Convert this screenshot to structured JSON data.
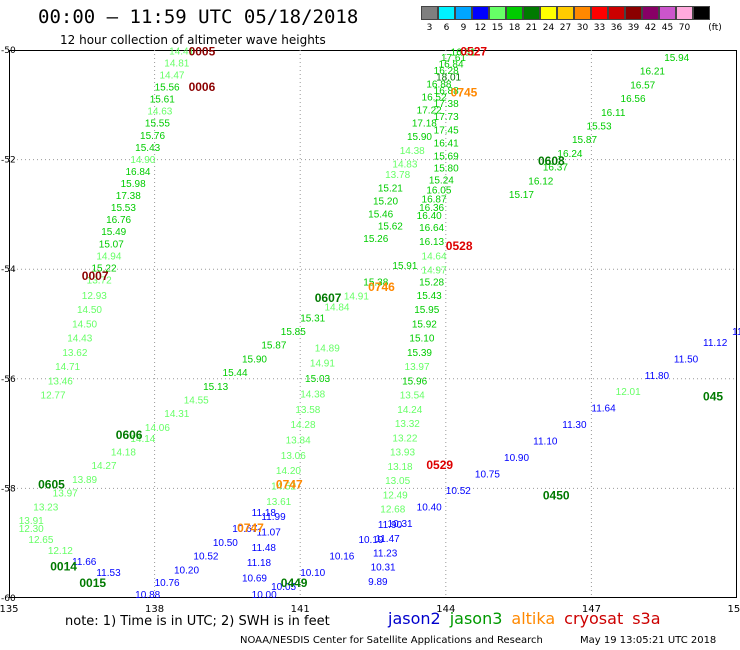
{
  "header": {
    "title": "00:00 – 11:59 UTC 05/18/2018",
    "subtitle": "12 hour collection of altimeter wave heights"
  },
  "legend": {
    "unit": "(ft)",
    "bins": [
      {
        "label": "3",
        "color": "#7f7f7f"
      },
      {
        "label": "6",
        "color": "#00f2ff"
      },
      {
        "label": "9",
        "color": "#00a6ff"
      },
      {
        "label": "12",
        "color": "#0000ff"
      },
      {
        "label": "15",
        "color": "#66ff66"
      },
      {
        "label": "18",
        "color": "#00cc00"
      },
      {
        "label": "21",
        "color": "#007a00"
      },
      {
        "label": "24",
        "color": "#ffff00"
      },
      {
        "label": "27",
        "color": "#ffcc00"
      },
      {
        "label": "30",
        "color": "#ff8800"
      },
      {
        "label": "33",
        "color": "#ff0000"
      },
      {
        "label": "36",
        "color": "#cc0000"
      },
      {
        "label": "39",
        "color": "#8b0000"
      },
      {
        "label": "42",
        "color": "#880066"
      },
      {
        "label": "45",
        "color": "#cc55cc"
      },
      {
        "label": "70",
        "color": "#ffaadd"
      },
      {
        "label": "",
        "color": "#000000"
      }
    ]
  },
  "map": {
    "x_range": [
      135,
      150
    ],
    "y_range": [
      -60,
      -50
    ],
    "x_ticks": [
      "135",
      "138",
      "141",
      "144",
      "147",
      "150"
    ],
    "y_ticks": [
      "-50",
      "-52",
      "-54",
      "-56",
      "-58",
      "-60"
    ]
  },
  "note": "note: 1) Time is in UTC; 2) SWH is in feet",
  "missions": [
    {
      "label": "jason2",
      "color": "#0000cc"
    },
    {
      "label": "jason3",
      "color": "#009900"
    },
    {
      "label": "altika",
      "color": "#ff8800"
    },
    {
      "label": "cryosat",
      "color": "#cc0000"
    },
    {
      "label": "s3a",
      "color": "#cc0000"
    }
  ],
  "credit": "NOAA/NESDIS Center for Satellite Applications and Research",
  "timestamp": "May 19 13:05:21 UTC 2018",
  "tracks": [
    {
      "name": "track-0005",
      "points": [
        {
          "lon": 138.3,
          "lat": -50.08,
          "v": "14.41"
        },
        {
          "lon": 138.2,
          "lat": -50.3,
          "v": "14.81"
        },
        {
          "lon": 138.1,
          "lat": -50.52,
          "v": "14.47"
        },
        {
          "lon": 138.0,
          "lat": -50.74,
          "v": "15.56"
        },
        {
          "lon": 137.9,
          "lat": -50.96,
          "v": "15.61"
        },
        {
          "lon": 137.85,
          "lat": -51.18,
          "v": "14.63"
        },
        {
          "lon": 137.8,
          "lat": -51.4,
          "v": "15.55"
        },
        {
          "lon": 137.7,
          "lat": -51.62,
          "v": "15.76"
        },
        {
          "lon": 137.6,
          "lat": -51.84,
          "v": "15.43"
        },
        {
          "lon": 137.5,
          "lat": -52.06,
          "v": "14.90"
        },
        {
          "lon": 137.4,
          "lat": -52.28,
          "v": "16.84"
        },
        {
          "lon": 137.3,
          "lat": -52.5,
          "v": "15.98"
        },
        {
          "lon": 137.2,
          "lat": -52.72,
          "v": "17.38"
        },
        {
          "lon": 137.1,
          "lat": -52.94,
          "v": "15.53"
        },
        {
          "lon": 137.0,
          "lat": -53.16,
          "v": "16.76"
        },
        {
          "lon": 136.9,
          "lat": -53.38,
          "v": "15.49"
        },
        {
          "lon": 136.85,
          "lat": -53.6,
          "v": "15.07"
        },
        {
          "lon": 136.8,
          "lat": -53.82,
          "v": "14.94"
        },
        {
          "lon": 136.7,
          "lat": -54.04,
          "v": "15.22"
        },
        {
          "lon": 136.6,
          "lat": -54.26,
          "v": "13.72"
        },
        {
          "lon": 136.5,
          "lat": -54.54,
          "v": "12.93"
        },
        {
          "lon": 136.4,
          "lat": -54.8,
          "v": "14.50"
        },
        {
          "lon": 136.3,
          "lat": -55.06,
          "v": "14.50"
        },
        {
          "lon": 136.2,
          "lat": -55.32,
          "v": "14.43"
        },
        {
          "lon": 136.1,
          "lat": -55.58,
          "v": "13.62"
        },
        {
          "lon": 135.95,
          "lat": -55.84,
          "v": "14.71"
        },
        {
          "lon": 135.8,
          "lat": -56.1,
          "v": "13.46"
        },
        {
          "lon": 135.65,
          "lat": -56.36,
          "v": "12.77"
        }
      ]
    },
    {
      "name": "track-0527",
      "points": [
        {
          "lon": 144.1,
          "lat": -50.1,
          "v": "16.51"
        },
        {
          "lon": 143.9,
          "lat": -50.2,
          "v": "17.61"
        },
        {
          "lon": 143.85,
          "lat": -50.32,
          "v": "16.84"
        },
        {
          "lon": 143.75,
          "lat": -50.44,
          "v": "16.28"
        },
        {
          "lon": 143.8,
          "lat": -50.56,
          "v": "18.01"
        },
        {
          "lon": 143.6,
          "lat": -50.68,
          "v": "16.88"
        },
        {
          "lon": 143.75,
          "lat": -50.8,
          "v": "16.88"
        },
        {
          "lon": 143.5,
          "lat": -50.92,
          "v": "16.52"
        },
        {
          "lon": 143.75,
          "lat": -51.04,
          "v": "17.38"
        },
        {
          "lon": 143.4,
          "lat": -51.16,
          "v": "17.22"
        },
        {
          "lon": 143.75,
          "lat": -51.28,
          "v": "17.73"
        },
        {
          "lon": 143.3,
          "lat": -51.4,
          "v": "17.18"
        },
        {
          "lon": 143.75,
          "lat": -51.52,
          "v": "17.45"
        },
        {
          "lon": 143.2,
          "lat": -51.64,
          "v": "15.90"
        },
        {
          "lon": 143.75,
          "lat": -51.76,
          "v": "16.41"
        },
        {
          "lon": 143.05,
          "lat": -51.9,
          "v": "14.38"
        },
        {
          "lon": 143.75,
          "lat": -52.0,
          "v": "15.69"
        },
        {
          "lon": 142.9,
          "lat": -52.14,
          "v": "14.83"
        },
        {
          "lon": 143.75,
          "lat": -52.22,
          "v": "15.80"
        },
        {
          "lon": 142.75,
          "lat": -52.34,
          "v": "13.78"
        },
        {
          "lon": 143.65,
          "lat": -52.44,
          "v": "15.24"
        },
        {
          "lon": 142.6,
          "lat": -52.58,
          "v": "15.21"
        },
        {
          "lon": 143.6,
          "lat": -52.62,
          "v": "16.05"
        },
        {
          "lon": 143.5,
          "lat": -52.78,
          "v": "16.87"
        },
        {
          "lon": 142.5,
          "lat": -52.82,
          "v": "15.20"
        },
        {
          "lon": 143.45,
          "lat": -52.94,
          "v": "16.36"
        },
        {
          "lon": 142.4,
          "lat": -53.06,
          "v": "15.46"
        },
        {
          "lon": 143.4,
          "lat": -53.08,
          "v": "16.40"
        },
        {
          "lon": 142.6,
          "lat": -53.28,
          "v": "15.62"
        },
        {
          "lon": 143.45,
          "lat": -53.3,
          "v": "16.64"
        },
        {
          "lon": 142.3,
          "lat": -53.5,
          "v": "15.26"
        },
        {
          "lon": 143.45,
          "lat": -53.56,
          "v": "16.13"
        },
        {
          "lon": 143.5,
          "lat": -53.82,
          "v": "14.64"
        },
        {
          "lon": 143.5,
          "lat": -54.08,
          "v": "14.97"
        },
        {
          "lon": 143.45,
          "lat": -54.3,
          "v": "15.28"
        },
        {
          "lon": 143.4,
          "lat": -54.54,
          "v": "15.43"
        },
        {
          "lon": 143.35,
          "lat": -54.8,
          "v": "15.95"
        },
        {
          "lon": 143.3,
          "lat": -55.06,
          "v": "15.92"
        },
        {
          "lon": 143.25,
          "lat": -55.32,
          "v": "15.10"
        },
        {
          "lon": 143.2,
          "lat": -55.58,
          "v": "15.39"
        },
        {
          "lon": 143.15,
          "lat": -55.84,
          "v": "13.97"
        },
        {
          "lon": 143.1,
          "lat": -56.1,
          "v": "15.96"
        },
        {
          "lon": 143.05,
          "lat": -56.36,
          "v": "13.54"
        },
        {
          "lon": 143.0,
          "lat": -56.62,
          "v": "14.24"
        },
        {
          "lon": 142.95,
          "lat": -56.88,
          "v": "13.32"
        },
        {
          "lon": 142.9,
          "lat": -57.14,
          "v": "13.22"
        },
        {
          "lon": 142.85,
          "lat": -57.4,
          "v": "13.93"
        },
        {
          "lon": 142.8,
          "lat": -57.66,
          "v": "13.18"
        },
        {
          "lon": 142.75,
          "lat": -57.92,
          "v": "13.05"
        },
        {
          "lon": 142.7,
          "lat": -58.18,
          "v": "12.49"
        },
        {
          "lon": 142.65,
          "lat": -58.44,
          "v": "12.68"
        },
        {
          "lon": 142.6,
          "lat": -58.72,
          "v": "11.90"
        },
        {
          "lon": 142.55,
          "lat": -58.98,
          "v": "11.47"
        },
        {
          "lon": 142.5,
          "lat": -59.24,
          "v": "11.23"
        },
        {
          "lon": 142.45,
          "lat": -59.5,
          "v": "10.31"
        },
        {
          "lon": 142.4,
          "lat": -59.76,
          "v": "9.89"
        }
      ]
    },
    {
      "name": "track-0608",
      "points": [
        {
          "lon": 148.5,
          "lat": -50.2,
          "v": "15.94"
        },
        {
          "lon": 148.0,
          "lat": -50.45,
          "v": "16.21"
        },
        {
          "lon": 147.8,
          "lat": -50.7,
          "v": "16.57"
        },
        {
          "lon": 147.6,
          "lat": -50.95,
          "v": "16.56"
        },
        {
          "lon": 147.2,
          "lat": -51.2,
          "v": "16.11"
        },
        {
          "lon": 146.9,
          "lat": -51.45,
          "v": "15.53"
        },
        {
          "lon": 146.6,
          "lat": -51.7,
          "v": "15.87"
        },
        {
          "lon": 146.3,
          "lat": -51.95,
          "v": "16.24"
        },
        {
          "lon": 146.0,
          "lat": -52.2,
          "v": "16.37"
        },
        {
          "lon": 145.7,
          "lat": -52.45,
          "v": "16.12"
        },
        {
          "lon": 145.3,
          "lat": -52.7,
          "v": "15.17"
        }
      ]
    },
    {
      "name": "track-0607",
      "points": [
        {
          "lon": 142.9,
          "lat": -54.0,
          "v": "15.91"
        },
        {
          "lon": 142.3,
          "lat": -54.3,
          "v": "15.38"
        },
        {
          "lon": 141.9,
          "lat": -54.55,
          "v": "14.91"
        },
        {
          "lon": 141.5,
          "lat": -54.75,
          "v": "14.84"
        },
        {
          "lon": 141.0,
          "lat": -54.95,
          "v": "15.31"
        },
        {
          "lon": 140.6,
          "lat": -55.2,
          "v": "15.85"
        },
        {
          "lon": 140.2,
          "lat": -55.45,
          "v": "15.87"
        },
        {
          "lon": 139.8,
          "lat": -55.7,
          "v": "15.90"
        },
        {
          "lon": 139.4,
          "lat": -55.95,
          "v": "15.44"
        },
        {
          "lon": 139.0,
          "lat": -56.2,
          "v": "15.13"
        },
        {
          "lon": 138.6,
          "lat": -56.45,
          "v": "14.55"
        },
        {
          "lon": 138.2,
          "lat": -56.7,
          "v": "14.31"
        },
        {
          "lon": 137.8,
          "lat": -56.95,
          "v": "14.06"
        },
        {
          "lon": 137.5,
          "lat": -57.15,
          "v": "14.14"
        },
        {
          "lon": 137.1,
          "lat": -57.4,
          "v": "14.18"
        },
        {
          "lon": 136.7,
          "lat": -57.65,
          "v": "14.27"
        },
        {
          "lon": 136.3,
          "lat": -57.9,
          "v": "13.89"
        },
        {
          "lon": 135.9,
          "lat": -58.15,
          "v": "13.97"
        },
        {
          "lon": 135.5,
          "lat": -58.4,
          "v": "13.23"
        },
        {
          "lon": 135.2,
          "lat": -58.65,
          "v": "13.91"
        }
      ]
    },
    {
      "name": "track-0747",
      "points": [
        {
          "lon": 141.3,
          "lat": -55.5,
          "v": "14.89"
        },
        {
          "lon": 141.2,
          "lat": -55.78,
          "v": "14.91"
        },
        {
          "lon": 141.1,
          "lat": -56.06,
          "v": "15.03"
        },
        {
          "lon": 141.0,
          "lat": -56.34,
          "v": "14.38"
        },
        {
          "lon": 140.9,
          "lat": -56.62,
          "v": "13.58"
        },
        {
          "lon": 140.8,
          "lat": -56.9,
          "v": "14.28"
        },
        {
          "lon": 140.7,
          "lat": -57.18,
          "v": "13.84"
        },
        {
          "lon": 140.6,
          "lat": -57.46,
          "v": "13.06"
        },
        {
          "lon": 140.5,
          "lat": -57.74,
          "v": "14.20"
        },
        {
          "lon": 140.4,
          "lat": -58.02,
          "v": "14.52"
        },
        {
          "lon": 140.3,
          "lat": -58.3,
          "v": "13.61"
        },
        {
          "lon": 140.2,
          "lat": -58.58,
          "v": "11.99"
        },
        {
          "lon": 140.1,
          "lat": -58.86,
          "v": "11.07"
        },
        {
          "lon": 140.0,
          "lat": -59.14,
          "v": "11.48"
        },
        {
          "lon": 139.9,
          "lat": -59.42,
          "v": "11.18"
        },
        {
          "lon": 139.8,
          "lat": -59.7,
          "v": "10.69"
        }
      ]
    },
    {
      "name": "track-0014",
      "points": [
        {
          "lon": 140.0,
          "lat": -58.5,
          "v": "11.18"
        },
        {
          "lon": 139.6,
          "lat": -58.8,
          "v": "10.67"
        },
        {
          "lon": 139.2,
          "lat": -59.05,
          "v": "10.50"
        },
        {
          "lon": 138.8,
          "lat": -59.3,
          "v": "10.52"
        },
        {
          "lon": 138.4,
          "lat": -59.55,
          "v": "10.20"
        },
        {
          "lon": 138.0,
          "lat": -59.78,
          "v": "10.76"
        },
        {
          "lon": 137.6,
          "lat": -60.0,
          "v": "10.88"
        },
        {
          "lon": 136.8,
          "lat": -59.6,
          "v": "11.53"
        },
        {
          "lon": 136.3,
          "lat": -59.4,
          "v": "11.66"
        },
        {
          "lon": 135.8,
          "lat": -59.2,
          "v": "12.12"
        },
        {
          "lon": 135.4,
          "lat": -59.0,
          "v": "12.65"
        },
        {
          "lon": 135.2,
          "lat": -58.8,
          "v": "12.30"
        }
      ]
    },
    {
      "name": "track-0450",
      "points": [
        {
          "lon": 149.9,
          "lat": -55.2,
          "v": "11.10"
        },
        {
          "lon": 149.3,
          "lat": -55.4,
          "v": "11.12"
        },
        {
          "lon": 148.7,
          "lat": -55.7,
          "v": "11.50"
        },
        {
          "lon": 148.1,
          "lat": -56.0,
          "v": "11.80"
        },
        {
          "lon": 147.5,
          "lat": -56.3,
          "v": "12.01"
        },
        {
          "lon": 147.0,
          "lat": -56.6,
          "v": "11.64"
        },
        {
          "lon": 146.4,
          "lat": -56.9,
          "v": "11.30"
        },
        {
          "lon": 145.8,
          "lat": -57.2,
          "v": "11.10"
        },
        {
          "lon": 145.2,
          "lat": -57.5,
          "v": "10.90"
        },
        {
          "lon": 144.6,
          "lat": -57.8,
          "v": "10.75"
        },
        {
          "lon": 144.0,
          "lat": -58.1,
          "v": "10.52"
        },
        {
          "lon": 143.4,
          "lat": -58.4,
          "v": "10.40"
        },
        {
          "lon": 142.8,
          "lat": -58.7,
          "v": "10.31"
        },
        {
          "lon": 142.2,
          "lat": -59.0,
          "v": "10.19"
        },
        {
          "lon": 141.6,
          "lat": -59.3,
          "v": "10.16"
        },
        {
          "lon": 141.0,
          "lat": -59.6,
          "v": "10.10"
        },
        {
          "lon": 140.4,
          "lat": -59.85,
          "v": "10.05"
        },
        {
          "lon": 140.0,
          "lat": -60.0,
          "v": "10.00"
        }
      ]
    }
  ],
  "time_labels": [
    {
      "text": "0005",
      "lon": 138.7,
      "lat": -50.1,
      "color": "#8b0000"
    },
    {
      "text": "0006",
      "lon": 138.7,
      "lat": -50.75,
      "color": "#8b0000"
    },
    {
      "text": "0007",
      "lon": 136.5,
      "lat": -54.2,
      "color": "#8b0000"
    },
    {
      "text": "0527",
      "lon": 144.3,
      "lat": -50.1,
      "color": "#dd0000"
    },
    {
      "text": "0745",
      "lon": 144.1,
      "lat": -50.85,
      "color": "#ff8800"
    },
    {
      "text": "0608",
      "lon": 145.9,
      "lat": -52.1,
      "color": "#007a00"
    },
    {
      "text": "0528",
      "lon": 144.0,
      "lat": -53.65,
      "color": "#dd0000"
    },
    {
      "text": "0746",
      "lon": 142.4,
      "lat": -54.4,
      "color": "#ff8800"
    },
    {
      "text": "0607",
      "lon": 141.3,
      "lat": -54.6,
      "color": "#007a00"
    },
    {
      "text": "0606",
      "lon": 137.2,
      "lat": -57.1,
      "color": "#007a00"
    },
    {
      "text": "0605",
      "lon": 135.6,
      "lat": -58.0,
      "color": "#007a00"
    },
    {
      "text": "0529",
      "lon": 143.6,
      "lat": -57.65,
      "color": "#dd0000"
    },
    {
      "text": "0747",
      "lon": 140.5,
      "lat": -58.0,
      "color": "#ff8800"
    },
    {
      "text": "0747",
      "lon": 139.7,
      "lat": -58.8,
      "color": "#ff8800"
    },
    {
      "text": "0450",
      "lon": 146.0,
      "lat": -58.2,
      "color": "#007a00"
    },
    {
      "text": "0449",
      "lon": 140.6,
      "lat": -59.8,
      "color": "#007a00"
    },
    {
      "text": "0014",
      "lon": 135.85,
      "lat": -59.5,
      "color": "#007a00"
    },
    {
      "text": "0015",
      "lon": 136.45,
      "lat": -59.8,
      "color": "#007a00"
    },
    {
      "text": "045",
      "lon": 149.3,
      "lat": -56.4,
      "color": "#007a00"
    }
  ]
}
